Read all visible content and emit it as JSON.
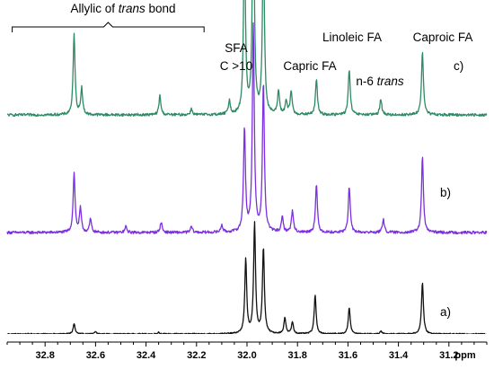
{
  "chart_data": {
    "type": "line",
    "xlabel": "ppm",
    "x_reversed": true,
    "xlim": [
      32.95,
      31.05
    ],
    "x_ticks": [
      32.8,
      32.6,
      32.4,
      32.2,
      32.0,
      31.8,
      31.6,
      31.4,
      31.2
    ],
    "x_tick_labels": [
      "32.8",
      "32.6",
      "32.4",
      "32.2",
      "32.0",
      "31.8",
      "31.6",
      "31.4",
      "31.2"
    ],
    "y_axis_shown": false,
    "grid": false,
    "annotations": [
      {
        "text_parts": [
          "Allylic of ",
          "trans",
          " bond"
        ],
        "italic_index": 1,
        "spans_ppm": [
          32.93,
          32.17
        ]
      },
      {
        "text": "SFA",
        "ppm": 32.03
      },
      {
        "text": "C >10",
        "ppm": 32.03
      },
      {
        "text": "Capric FA",
        "ppm": 31.83
      },
      {
        "text": "Linoleic FA",
        "ppm": 31.62
      },
      {
        "text_parts": [
          "n-6 ",
          "trans"
        ],
        "italic_index": 1,
        "ppm": 31.45
      },
      {
        "text": "Caproic FA",
        "ppm": 31.27
      }
    ],
    "series": [
      {
        "name": "a)",
        "color": "#111111",
        "peaks": [
          {
            "ppm": 32.685,
            "height": 0.035
          },
          {
            "ppm": 32.6,
            "height": 0.008
          },
          {
            "ppm": 32.35,
            "height": 0.006
          },
          {
            "ppm": 32.005,
            "height": 0.25
          },
          {
            "ppm": 31.97,
            "height": 0.37
          },
          {
            "ppm": 31.935,
            "height": 0.29
          },
          {
            "ppm": 31.85,
            "height": 0.055
          },
          {
            "ppm": 31.82,
            "height": 0.04
          },
          {
            "ppm": 31.73,
            "height": 0.13
          },
          {
            "ppm": 31.595,
            "height": 0.09
          },
          {
            "ppm": 31.47,
            "height": 0.01
          },
          {
            "ppm": 31.305,
            "height": 0.175
          }
        ]
      },
      {
        "name": "b)",
        "color": "#7b2fe0",
        "peaks": [
          {
            "ppm": 32.685,
            "height": 0.2
          },
          {
            "ppm": 32.66,
            "height": 0.08
          },
          {
            "ppm": 32.62,
            "height": 0.045
          },
          {
            "ppm": 32.48,
            "height": 0.02
          },
          {
            "ppm": 32.34,
            "height": 0.035
          },
          {
            "ppm": 32.22,
            "height": 0.02
          },
          {
            "ppm": 32.1,
            "height": 0.025
          },
          {
            "ppm": 32.01,
            "height": 0.35
          },
          {
            "ppm": 31.975,
            "height": 0.7
          },
          {
            "ppm": 31.935,
            "height": 0.5
          },
          {
            "ppm": 31.86,
            "height": 0.05
          },
          {
            "ppm": 31.82,
            "height": 0.075
          },
          {
            "ppm": 31.725,
            "height": 0.16
          },
          {
            "ppm": 31.595,
            "height": 0.155
          },
          {
            "ppm": 31.46,
            "height": 0.045
          },
          {
            "ppm": 31.305,
            "height": 0.255
          }
        ]
      },
      {
        "name": "c)",
        "color": "#2e8a64",
        "peaks": [
          {
            "ppm": 32.685,
            "height": 0.27
          },
          {
            "ppm": 32.655,
            "height": 0.09
          },
          {
            "ppm": 32.345,
            "height": 0.065
          },
          {
            "ppm": 32.22,
            "height": 0.02
          },
          {
            "ppm": 32.07,
            "height": 0.045
          },
          {
            "ppm": 32.01,
            "height": 0.6
          },
          {
            "ppm": 31.975,
            "height": 0.8
          },
          {
            "ppm": 31.935,
            "height": 0.6
          },
          {
            "ppm": 31.875,
            "height": 0.08
          },
          {
            "ppm": 31.845,
            "height": 0.045
          },
          {
            "ppm": 31.825,
            "height": 0.08
          },
          {
            "ppm": 31.725,
            "height": 0.12
          },
          {
            "ppm": 31.595,
            "height": 0.155
          },
          {
            "ppm": 31.47,
            "height": 0.055
          },
          {
            "ppm": 31.305,
            "height": 0.215
          }
        ]
      }
    ]
  }
}
